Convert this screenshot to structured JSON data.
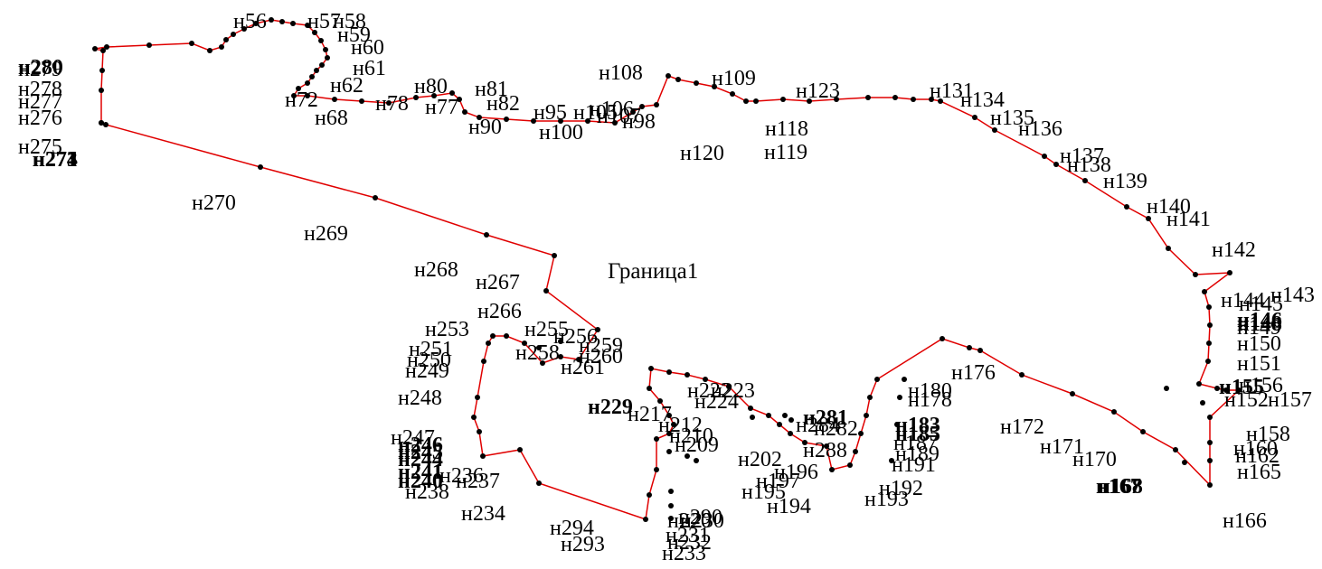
{
  "title": "Граница1",
  "style": {
    "line_color": "#e00000",
    "point_color": "#000000",
    "text_color": "#000000"
  },
  "labels": [
    "н56",
    "н57",
    "н58",
    "н59",
    "н60",
    "н61",
    "н62",
    "н68",
    "н72",
    "н78",
    "н77",
    "н80",
    "н81",
    "н82",
    "н90",
    "н95",
    "н98",
    "н100",
    "н105",
    "н106",
    "н107",
    "н108",
    "н109",
    "н118",
    "н119",
    "н120",
    "н123",
    "н131",
    "н134",
    "н135",
    "н136",
    "н137",
    "н138",
    "н139",
    "н140",
    "н141",
    "н142",
    "н143",
    "н144",
    "н145",
    "н146",
    "н148",
    "н149",
    "н150",
    "н151",
    "н152",
    "н155",
    "н156",
    "н157",
    "н158",
    "н160",
    "н162",
    "н165",
    "н166",
    "н167",
    "н168",
    "н170",
    "н171",
    "н172",
    "н176",
    "н178",
    "н180",
    "н183",
    "н185",
    "н187",
    "н189",
    "н191",
    "н192",
    "н193",
    "н194",
    "н195",
    "н196",
    "н197",
    "н202",
    "н209",
    "н210",
    "н212",
    "н217",
    "н220",
    "н222",
    "н223",
    "н224",
    "н229",
    "н230",
    "н231",
    "н232",
    "н233",
    "н234",
    "н236",
    "н237",
    "н238",
    "н240",
    "н241",
    "н244",
    "н245",
    "н246",
    "н247",
    "н248",
    "н249",
    "н250",
    "н251",
    "н253",
    "н255",
    "н256",
    "н258",
    "н259",
    "н260",
    "н261",
    "н266",
    "н267",
    "н268",
    "н269",
    "н270",
    "н271",
    "н273",
    "н274",
    "н275",
    "н276",
    "н277",
    "н278",
    "н279",
    "н280",
    "н281",
    "н282",
    "н284",
    "н288",
    "н290",
    "н293",
    "н294"
  ]
}
